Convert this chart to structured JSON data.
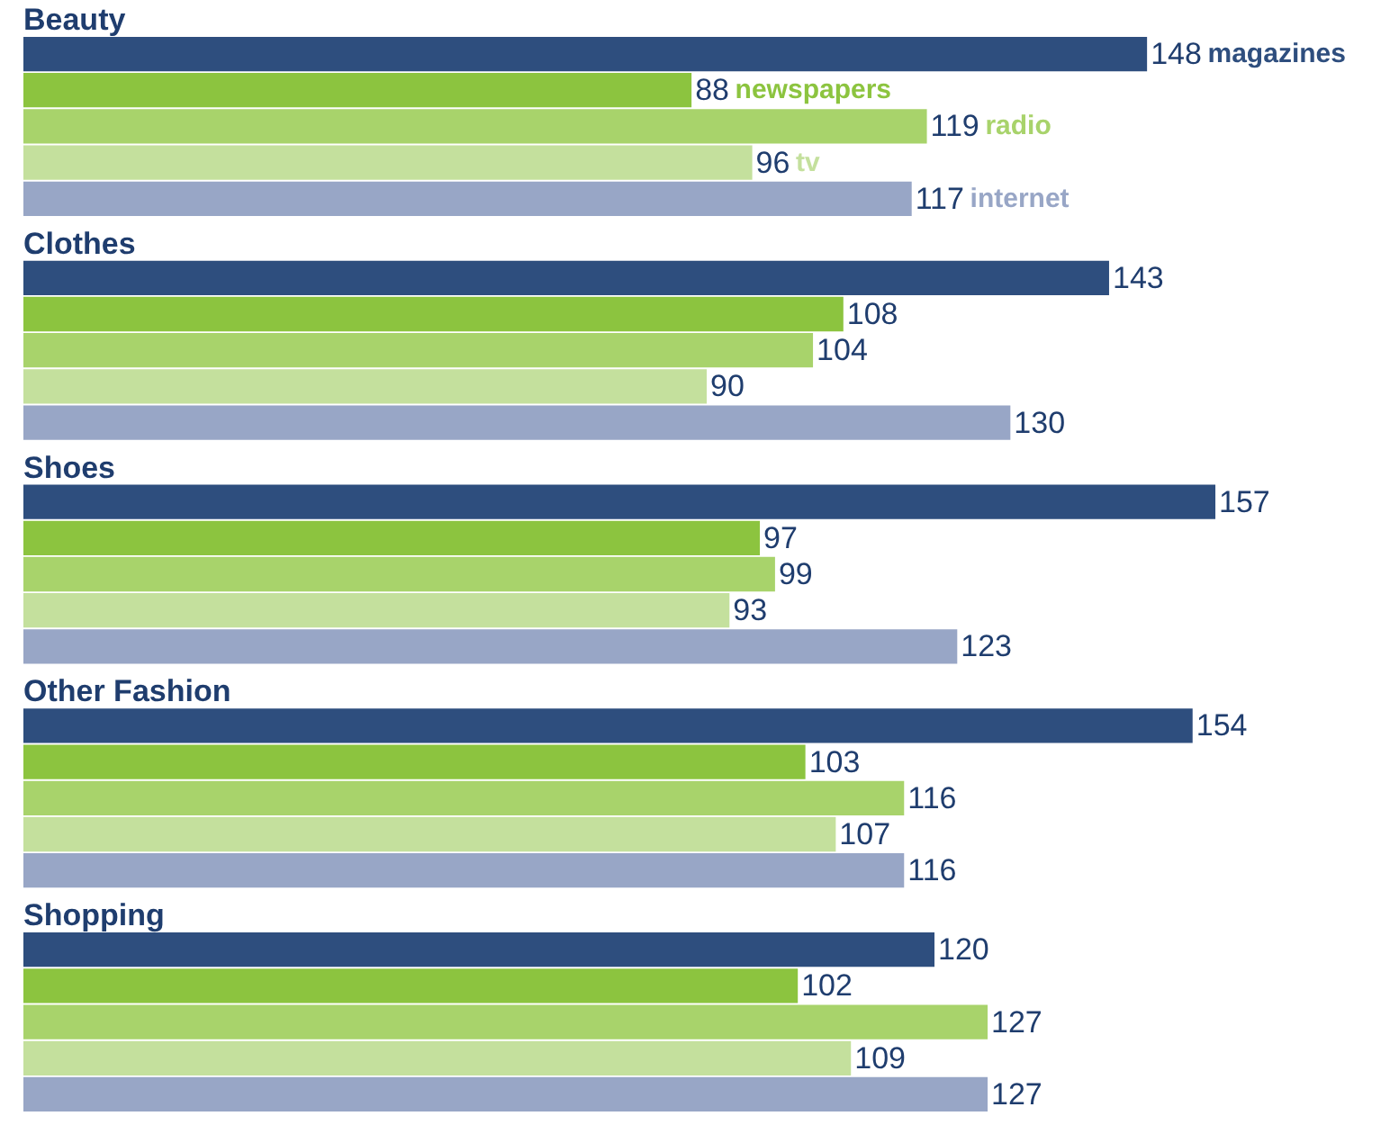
{
  "chart_data": {
    "type": "bar",
    "orientation": "horizontal",
    "categories": [
      "Beauty",
      "Clothes",
      "Shoes",
      "Other Fashion",
      "Shopping"
    ],
    "series": [
      {
        "name": "magazines",
        "color": "#2e4e7e",
        "values": [
          148,
          143,
          157,
          154,
          120
        ]
      },
      {
        "name": "newspapers",
        "color": "#8cc43f",
        "values": [
          88,
          108,
          97,
          103,
          102
        ]
      },
      {
        "name": "radio",
        "color": "#a8d36b",
        "values": [
          119,
          104,
          99,
          116,
          127
        ]
      },
      {
        "name": "tv",
        "color": "#c4e09d",
        "values": [
          96,
          90,
          93,
          107,
          109
        ]
      },
      {
        "name": "internet",
        "color": "#98a6c6",
        "values": [
          117,
          130,
          123,
          116,
          127
        ]
      }
    ],
    "data_labels": true,
    "legend": false
  }
}
